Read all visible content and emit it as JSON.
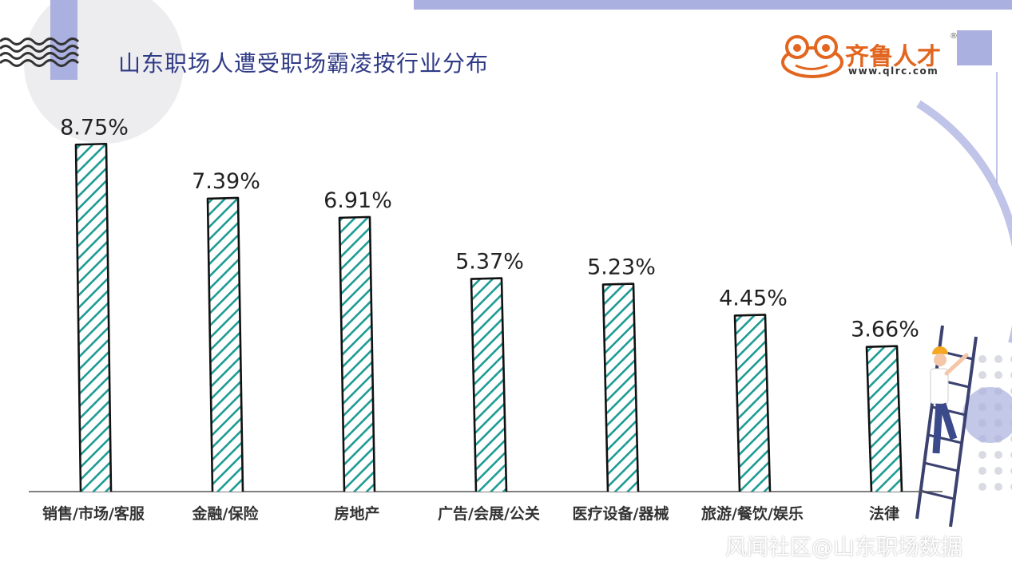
{
  "header": {
    "title": "山东职场人遭受职场霸凌按行业分布"
  },
  "logo": {
    "name": "齐鲁人才",
    "url": "www.qlrc.com",
    "registered_mark": "®"
  },
  "watermark": "风闻社区@山东职场数据",
  "colors": {
    "title": "#2f3a86",
    "bar_hatch": "#1d9b94",
    "accent_lavender": "#aab0e0",
    "logo_orange": "#e2661f"
  },
  "chart_data": {
    "type": "bar",
    "title": "山东职场人遭受职场霸凌按行业分布",
    "categories": [
      "销售/市场/客服",
      "金融/保险",
      "房地产",
      "广告/会展/公关",
      "医疗设备/器械",
      "旅游/餐饮/娱乐",
      "法律"
    ],
    "values": [
      8.75,
      7.39,
      6.91,
      5.37,
      5.23,
      4.45,
      3.66
    ],
    "value_labels": [
      "8.75%",
      "7.39%",
      "6.91%",
      "5.37%",
      "5.23%",
      "4.45%",
      "3.66%"
    ],
    "ylim": [
      0,
      10
    ],
    "grid": false,
    "legend": "none"
  }
}
